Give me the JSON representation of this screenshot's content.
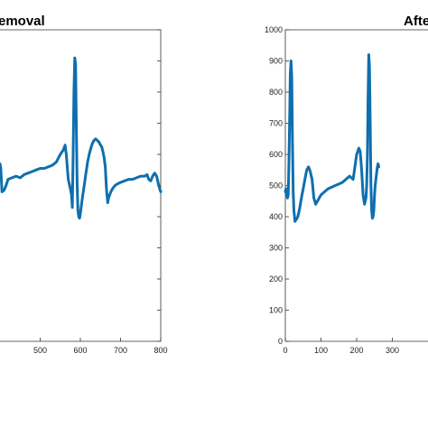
{
  "chart_data": [
    {
      "type": "line",
      "title": "emoval",
      "xlim": [
        400,
        800
      ],
      "ylim": [
        0,
        1000
      ],
      "xticks": [
        "500",
        "600",
        "700",
        "800"
      ],
      "xtick_values": [
        500,
        600,
        700,
        800
      ],
      "yticks_visible": false,
      "grid": false,
      "series": [
        {
          "color": "#0e6fae",
          "x": [
            400,
            402,
            405,
            410,
            415,
            420,
            430,
            440,
            450,
            460,
            470,
            480,
            490,
            500,
            510,
            520,
            530,
            540,
            550,
            558,
            562,
            565,
            570,
            575,
            578,
            580,
            582,
            584,
            586,
            588,
            590,
            592,
            594,
            596,
            598,
            600,
            603,
            606,
            610,
            614,
            618,
            622,
            626,
            630,
            634,
            638,
            642,
            646,
            650,
            653,
            656,
            659,
            662,
            665,
            668,
            670,
            673,
            676,
            680,
            686,
            692,
            700,
            710,
            720,
            730,
            740,
            750,
            760,
            766,
            770,
            775,
            780,
            785,
            790,
            795,
            800
          ],
          "y": [
            570,
            555,
            480,
            485,
            500,
            520,
            525,
            530,
            525,
            535,
            540,
            545,
            550,
            555,
            555,
            560,
            565,
            575,
            600,
            615,
            630,
            600,
            520,
            490,
            470,
            430,
            600,
            800,
            910,
            890,
            700,
            510,
            420,
            400,
            395,
            410,
            440,
            470,
            505,
            540,
            575,
            600,
            620,
            635,
            645,
            650,
            645,
            640,
            630,
            625,
            610,
            590,
            560,
            490,
            445,
            460,
            470,
            480,
            490,
            500,
            505,
            510,
            515,
            520,
            520,
            525,
            530,
            530,
            535,
            520,
            515,
            530,
            540,
            530,
            500,
            480
          ]
        }
      ]
    },
    {
      "type": "line",
      "title": "Afte",
      "xlim": [
        0,
        400
      ],
      "ylim": [
        0,
        1000
      ],
      "xticks": [
        "0",
        "100",
        "200",
        "300"
      ],
      "xtick_values": [
        0,
        100,
        200,
        300
      ],
      "yticks": [
        "0",
        "100",
        "200",
        "300",
        "400",
        "500",
        "600",
        "700",
        "800",
        "900",
        "1000"
      ],
      "ytick_values": [
        0,
        100,
        200,
        300,
        400,
        500,
        600,
        700,
        800,
        900,
        1000
      ],
      "grid": false,
      "series": [
        {
          "color": "#0e6fae",
          "x": [
            0,
            2,
            4,
            6,
            8,
            10,
            12,
            14,
            16,
            18,
            20,
            22,
            24,
            27,
            30,
            35,
            40,
            45,
            50,
            55,
            60,
            65,
            70,
            75,
            80,
            85,
            90,
            95,
            100,
            110,
            120,
            130,
            140,
            150,
            160,
            170,
            180,
            190,
            200,
            206,
            210,
            214,
            218,
            222,
            226,
            228,
            230,
            232,
            234,
            236,
            238,
            240,
            242,
            244,
            246,
            248,
            250,
            252,
            254,
            256,
            258,
            260,
            262
          ],
          "y": [
            480,
            490,
            470,
            460,
            470,
            560,
            700,
            860,
            900,
            850,
            640,
            480,
            420,
            385,
            390,
            400,
            425,
            460,
            490,
            520,
            550,
            560,
            545,
            520,
            460,
            440,
            450,
            460,
            470,
            480,
            490,
            495,
            500,
            505,
            510,
            520,
            530,
            520,
            600,
            620,
            610,
            550,
            470,
            440,
            460,
            500,
            600,
            780,
            920,
            880,
            700,
            500,
            420,
            395,
            400,
            420,
            470,
            500,
            520,
            540,
            560,
            570,
            560
          ]
        }
      ]
    }
  ]
}
